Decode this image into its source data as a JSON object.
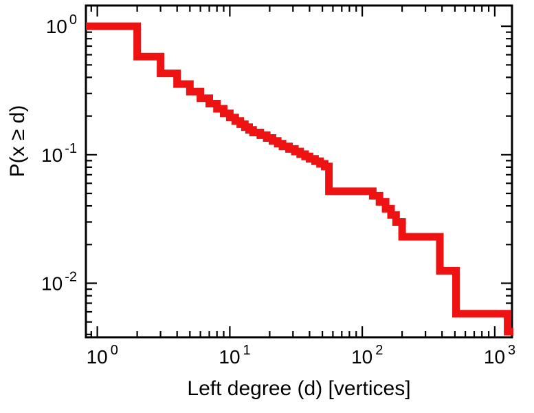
{
  "page": {
    "background": "#ffffff"
  },
  "chart_data": {
    "type": "line",
    "line_style": "step-post",
    "title": "",
    "xlabel": "Left degree (d) [vertices]",
    "ylabel": "P(x ≥ d)",
    "xscale": "log",
    "yscale": "log",
    "xlim": [
      0.82,
      1350
    ],
    "ylim": [
      0.0038,
      1.45
    ],
    "grid": false,
    "legend": null,
    "line_color": "#ee1212",
    "line_width": 11,
    "axis_color": "#000000",
    "x_ticks": [
      1,
      10,
      100,
      1000
    ],
    "x_tick_labels": [
      {
        "base": "10",
        "exp": "0"
      },
      {
        "base": "10",
        "exp": "1"
      },
      {
        "base": "10",
        "exp": "2"
      },
      {
        "base": "10",
        "exp": "3"
      }
    ],
    "y_ticks": [
      1,
      0.1,
      0.01
    ],
    "y_tick_labels": [
      {
        "base": "10",
        "exp": "0"
      },
      {
        "base": "10",
        "exp": "-1"
      },
      {
        "base": "10",
        "exp": "-2"
      }
    ],
    "points": [
      [
        1,
        1.0
      ],
      [
        2,
        0.58
      ],
      [
        3,
        0.43
      ],
      [
        4,
        0.355
      ],
      [
        5,
        0.31
      ],
      [
        6,
        0.275
      ],
      [
        7,
        0.25
      ],
      [
        8,
        0.228
      ],
      [
        9,
        0.21
      ],
      [
        10,
        0.195
      ],
      [
        11,
        0.183
      ],
      [
        12,
        0.173
      ],
      [
        13,
        0.164
      ],
      [
        14,
        0.156
      ],
      [
        15,
        0.149
      ],
      [
        17,
        0.142
      ],
      [
        19,
        0.135
      ],
      [
        21,
        0.128
      ],
      [
        23,
        0.122
      ],
      [
        25,
        0.116
      ],
      [
        28,
        0.111
      ],
      [
        31,
        0.106
      ],
      [
        34,
        0.101
      ],
      [
        37,
        0.097
      ],
      [
        40,
        0.093
      ],
      [
        44,
        0.089
      ],
      [
        48,
        0.085
      ],
      [
        52,
        0.081
      ],
      [
        56,
        0.052
      ],
      [
        120,
        0.048
      ],
      [
        135,
        0.043
      ],
      [
        150,
        0.038
      ],
      [
        165,
        0.034
      ],
      [
        180,
        0.03
      ],
      [
        200,
        0.023
      ],
      [
        385,
        0.0125
      ],
      [
        510,
        0.0058
      ],
      [
        1250,
        0.0042
      ]
    ]
  }
}
